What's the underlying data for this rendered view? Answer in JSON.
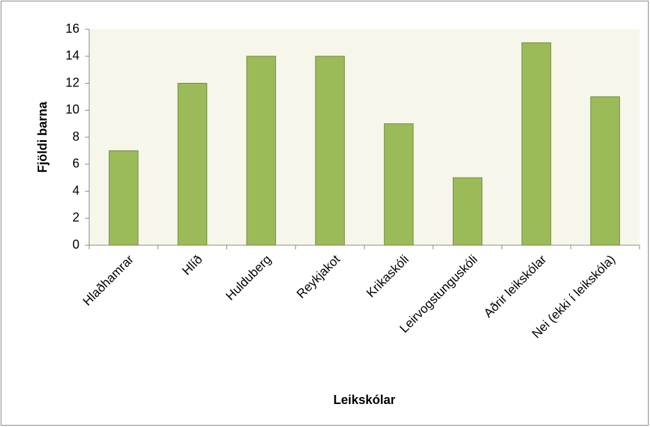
{
  "chart_data": {
    "type": "bar",
    "x_label": "Leikskólar",
    "y_label": "Fjöldi barna",
    "categories": [
      "Hlaðhamrar",
      "Hlíð",
      "Hulduberg",
      "Reykjakot",
      "Krikaskóli",
      "Leirvogstunguskóli",
      "Aðrir leikskólar",
      "Nei (ekki í leikskóla)"
    ],
    "values": [
      7,
      12,
      14,
      14,
      9,
      5,
      15,
      11
    ],
    "color": "#9bbb59",
    "ylim": [
      0,
      16
    ],
    "yticks": [
      0,
      2,
      4,
      6,
      8,
      10,
      12,
      14,
      16
    ],
    "grid": false
  }
}
